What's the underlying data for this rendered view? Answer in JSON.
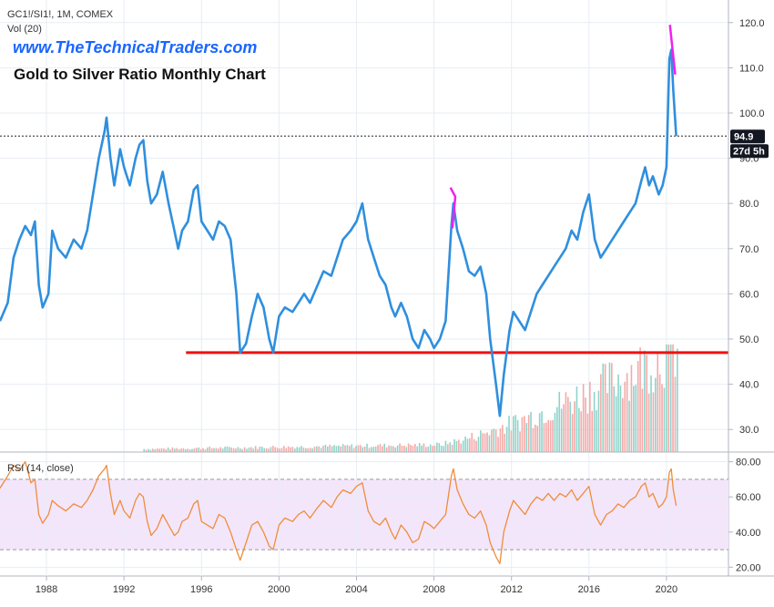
{
  "header": {
    "symbol_line": "GC1!/SI1!, 1M, COMEX",
    "volume_label": "Vol (20)",
    "website": "www.TheTechnicalTraders.com",
    "chart_title": "Gold to Silver Ratio Monthly Chart"
  },
  "price_badges": {
    "last_price": "94.9",
    "countdown": "27d 5h"
  },
  "rsi": {
    "label": "RSI (14, close)",
    "upper_band": 70,
    "lower_band": 30
  },
  "colors": {
    "price_line": "#2f8fde",
    "rsi_line": "#f08c3a",
    "rsi_band_fill": "#f3e6fb",
    "support_line": "#ee1111",
    "spike_marker": "#ee22ee",
    "volume_up": "#8fd3cb",
    "volume_down": "#f3aaa8",
    "grid": "#e7edf3",
    "badge_bg": "#131722"
  },
  "chart_data": [
    {
      "type": "line",
      "title": "Gold to Silver Ratio Monthly Chart",
      "x_ticks": [
        "1988",
        "1992",
        "1996",
        "2000",
        "2004",
        "2008",
        "2012",
        "2016",
        "2020"
      ],
      "y_ticks": [
        "30.0",
        "40.0",
        "50.0",
        "60.0",
        "70.0",
        "80.0",
        "90.0",
        "100.0",
        "110.0",
        "120.0"
      ],
      "ylim": [
        25,
        125
      ],
      "xlim": [
        1985.6,
        2023.2
      ],
      "series": [
        {
          "points": [
            [
              1985.6,
              54
            ],
            [
              1986.0,
              58
            ],
            [
              1986.3,
              68
            ],
            [
              1986.6,
              72
            ],
            [
              1986.9,
              75
            ],
            [
              1987.2,
              73
            ],
            [
              1987.4,
              76
            ],
            [
              1987.6,
              62
            ],
            [
              1987.8,
              57
            ],
            [
              1988.1,
              60
            ],
            [
              1988.3,
              74
            ],
            [
              1988.6,
              70
            ],
            [
              1989.0,
              68
            ],
            [
              1989.4,
              72
            ],
            [
              1989.8,
              70
            ],
            [
              1990.1,
              74
            ],
            [
              1990.4,
              82
            ],
            [
              1990.7,
              90
            ],
            [
              1991.0,
              96
            ],
            [
              1991.1,
              99
            ],
            [
              1991.3,
              90
            ],
            [
              1991.5,
              84
            ],
            [
              1991.8,
              92
            ],
            [
              1992.0,
              88
            ],
            [
              1992.3,
              84
            ],
            [
              1992.6,
              90
            ],
            [
              1992.8,
              93
            ],
            [
              1993.0,
              94
            ],
            [
              1993.2,
              85
            ],
            [
              1993.4,
              80
            ],
            [
              1993.7,
              82
            ],
            [
              1994.0,
              87
            ],
            [
              1994.3,
              80
            ],
            [
              1994.6,
              74
            ],
            [
              1994.8,
              70
            ],
            [
              1995.0,
              74
            ],
            [
              1995.3,
              76
            ],
            [
              1995.6,
              83
            ],
            [
              1995.8,
              84
            ],
            [
              1996.0,
              76
            ],
            [
              1996.3,
              74
            ],
            [
              1996.6,
              72
            ],
            [
              1996.9,
              76
            ],
            [
              1997.2,
              75
            ],
            [
              1997.5,
              72
            ],
            [
              1997.8,
              60
            ],
            [
              1998.0,
              47
            ],
            [
              1998.3,
              49
            ],
            [
              1998.6,
              55
            ],
            [
              1998.9,
              60
            ],
            [
              1999.2,
              57
            ],
            [
              1999.5,
              50
            ],
            [
              1999.7,
              47
            ],
            [
              2000.0,
              55
            ],
            [
              2000.3,
              57
            ],
            [
              2000.7,
              56
            ],
            [
              2001.0,
              58
            ],
            [
              2001.3,
              60
            ],
            [
              2001.6,
              58
            ],
            [
              2002.0,
              62
            ],
            [
              2002.3,
              65
            ],
            [
              2002.7,
              64
            ],
            [
              2003.0,
              68
            ],
            [
              2003.3,
              72
            ],
            [
              2003.7,
              74
            ],
            [
              2004.0,
              76
            ],
            [
              2004.3,
              80
            ],
            [
              2004.6,
              72
            ],
            [
              2004.9,
              68
            ],
            [
              2005.2,
              64
            ],
            [
              2005.5,
              62
            ],
            [
              2005.8,
              57
            ],
            [
              2006.0,
              55
            ],
            [
              2006.3,
              58
            ],
            [
              2006.6,
              55
            ],
            [
              2006.9,
              50
            ],
            [
              2007.2,
              48
            ],
            [
              2007.5,
              52
            ],
            [
              2007.8,
              50
            ],
            [
              2008.0,
              48
            ],
            [
              2008.3,
              50
            ],
            [
              2008.6,
              54
            ],
            [
              2008.9,
              75
            ],
            [
              2009.0,
              80
            ],
            [
              2009.2,
              74
            ],
            [
              2009.5,
              70
            ],
            [
              2009.8,
              65
            ],
            [
              2010.1,
              64
            ],
            [
              2010.4,
              66
            ],
            [
              2010.7,
              60
            ],
            [
              2010.9,
              50
            ],
            [
              2011.2,
              40
            ],
            [
              2011.4,
              33
            ],
            [
              2011.6,
              42
            ],
            [
              2011.9,
              52
            ],
            [
              2012.1,
              56
            ],
            [
              2012.4,
              54
            ],
            [
              2012.7,
              52
            ],
            [
              2013.0,
              56
            ],
            [
              2013.3,
              60
            ],
            [
              2013.6,
              62
            ],
            [
              2013.9,
              64
            ],
            [
              2014.2,
              66
            ],
            [
              2014.5,
              68
            ],
            [
              2014.8,
              70
            ],
            [
              2015.1,
              74
            ],
            [
              2015.4,
              72
            ],
            [
              2015.7,
              78
            ],
            [
              2016.0,
              82
            ],
            [
              2016.3,
              72
            ],
            [
              2016.6,
              68
            ],
            [
              2016.9,
              70
            ],
            [
              2017.2,
              72
            ],
            [
              2017.5,
              74
            ],
            [
              2017.8,
              76
            ],
            [
              2018.1,
              78
            ],
            [
              2018.4,
              80
            ],
            [
              2018.7,
              85
            ],
            [
              2018.9,
              88
            ],
            [
              2019.1,
              84
            ],
            [
              2019.3,
              86
            ],
            [
              2019.6,
              82
            ],
            [
              2019.8,
              84
            ],
            [
              2020.0,
              88
            ],
            [
              2020.15,
              112
            ],
            [
              2020.25,
              114
            ],
            [
              2020.35,
              105
            ],
            [
              2020.5,
              94.9
            ]
          ]
        }
      ]
    },
    {
      "type": "line",
      "title": "RSI (14, close)",
      "x_ticks": [
        "1988",
        "1992",
        "1996",
        "2000",
        "2004",
        "2008",
        "2012",
        "2016",
        "2020"
      ],
      "y_ticks": [
        "20.00",
        "40.00",
        "60.00",
        "80.00"
      ],
      "ylim": [
        15,
        85
      ],
      "xlim": [
        1985.6,
        2023.2
      ],
      "series": [
        {
          "points": [
            [
              1985.6,
              65
            ],
            [
              1986.0,
              72
            ],
            [
              1986.3,
              78
            ],
            [
              1986.6,
              75
            ],
            [
              1986.9,
              80
            ],
            [
              1987.2,
              68
            ],
            [
              1987.4,
              70
            ],
            [
              1987.6,
              50
            ],
            [
              1987.8,
              45
            ],
            [
              1988.1,
              50
            ],
            [
              1988.3,
              58
            ],
            [
              1988.6,
              55
            ],
            [
              1989.0,
              52
            ],
            [
              1989.4,
              56
            ],
            [
              1989.8,
              54
            ],
            [
              1990.1,
              58
            ],
            [
              1990.4,
              64
            ],
            [
              1990.7,
              72
            ],
            [
              1991.0,
              76
            ],
            [
              1991.1,
              78
            ],
            [
              1991.3,
              62
            ],
            [
              1991.5,
              50
            ],
            [
              1991.8,
              58
            ],
            [
              1992.0,
              52
            ],
            [
              1992.3,
              48
            ],
            [
              1992.6,
              58
            ],
            [
              1992.8,
              62
            ],
            [
              1993.0,
              60
            ],
            [
              1993.2,
              46
            ],
            [
              1993.4,
              38
            ],
            [
              1993.7,
              42
            ],
            [
              1994.0,
              50
            ],
            [
              1994.3,
              44
            ],
            [
              1994.6,
              38
            ],
            [
              1994.8,
              40
            ],
            [
              1995.0,
              46
            ],
            [
              1995.3,
              48
            ],
            [
              1995.6,
              56
            ],
            [
              1995.8,
              58
            ],
            [
              1996.0,
              46
            ],
            [
              1996.3,
              44
            ],
            [
              1996.6,
              42
            ],
            [
              1996.9,
              50
            ],
            [
              1997.2,
              48
            ],
            [
              1997.5,
              40
            ],
            [
              1997.8,
              30
            ],
            [
              1998.0,
              24
            ],
            [
              1998.3,
              34
            ],
            [
              1998.6,
              44
            ],
            [
              1998.9,
              46
            ],
            [
              1999.2,
              40
            ],
            [
              1999.5,
              32
            ],
            [
              1999.7,
              30
            ],
            [
              2000.0,
              44
            ],
            [
              2000.3,
              48
            ],
            [
              2000.7,
              46
            ],
            [
              2001.0,
              50
            ],
            [
              2001.3,
              52
            ],
            [
              2001.6,
              48
            ],
            [
              2002.0,
              54
            ],
            [
              2002.3,
              58
            ],
            [
              2002.7,
              54
            ],
            [
              2003.0,
              60
            ],
            [
              2003.3,
              64
            ],
            [
              2003.7,
              62
            ],
            [
              2004.0,
              66
            ],
            [
              2004.3,
              68
            ],
            [
              2004.6,
              52
            ],
            [
              2004.9,
              46
            ],
            [
              2005.2,
              44
            ],
            [
              2005.5,
              48
            ],
            [
              2005.8,
              40
            ],
            [
              2006.0,
              36
            ],
            [
              2006.3,
              44
            ],
            [
              2006.6,
              40
            ],
            [
              2006.9,
              34
            ],
            [
              2007.2,
              36
            ],
            [
              2007.5,
              46
            ],
            [
              2007.8,
              44
            ],
            [
              2008.0,
              42
            ],
            [
              2008.3,
              46
            ],
            [
              2008.6,
              50
            ],
            [
              2008.9,
              72
            ],
            [
              2009.0,
              76
            ],
            [
              2009.2,
              64
            ],
            [
              2009.5,
              56
            ],
            [
              2009.8,
              50
            ],
            [
              2010.1,
              48
            ],
            [
              2010.4,
              52
            ],
            [
              2010.7,
              44
            ],
            [
              2010.9,
              34
            ],
            [
              2011.2,
              26
            ],
            [
              2011.4,
              22
            ],
            [
              2011.6,
              40
            ],
            [
              2011.9,
              52
            ],
            [
              2012.1,
              58
            ],
            [
              2012.4,
              54
            ],
            [
              2012.7,
              50
            ],
            [
              2013.0,
              56
            ],
            [
              2013.3,
              60
            ],
            [
              2013.6,
              58
            ],
            [
              2013.9,
              62
            ],
            [
              2014.2,
              58
            ],
            [
              2014.5,
              62
            ],
            [
              2014.8,
              60
            ],
            [
              2015.1,
              64
            ],
            [
              2015.4,
              58
            ],
            [
              2015.7,
              62
            ],
            [
              2016.0,
              66
            ],
            [
              2016.3,
              50
            ],
            [
              2016.6,
              44
            ],
            [
              2016.9,
              50
            ],
            [
              2017.2,
              52
            ],
            [
              2017.5,
              56
            ],
            [
              2017.8,
              54
            ],
            [
              2018.1,
              58
            ],
            [
              2018.4,
              60
            ],
            [
              2018.7,
              66
            ],
            [
              2018.9,
              68
            ],
            [
              2019.1,
              60
            ],
            [
              2019.3,
              62
            ],
            [
              2019.6,
              54
            ],
            [
              2019.8,
              56
            ],
            [
              2020.0,
              60
            ],
            [
              2020.15,
              74
            ],
            [
              2020.25,
              76
            ],
            [
              2020.35,
              64
            ],
            [
              2020.5,
              55
            ]
          ]
        }
      ]
    }
  ],
  "annotations": {
    "support_level": 47,
    "support_from_year": 1995.2,
    "support_to_year": 2023.2,
    "last_price_level": 94.9,
    "spike_2008": [
      [
        2008.85,
        83.5
      ],
      [
        2009.1,
        81.5
      ],
      [
        2008.95,
        74.5
      ]
    ],
    "spike_2020": [
      [
        2020.18,
        119.5
      ],
      [
        2020.45,
        108.5
      ]
    ]
  }
}
